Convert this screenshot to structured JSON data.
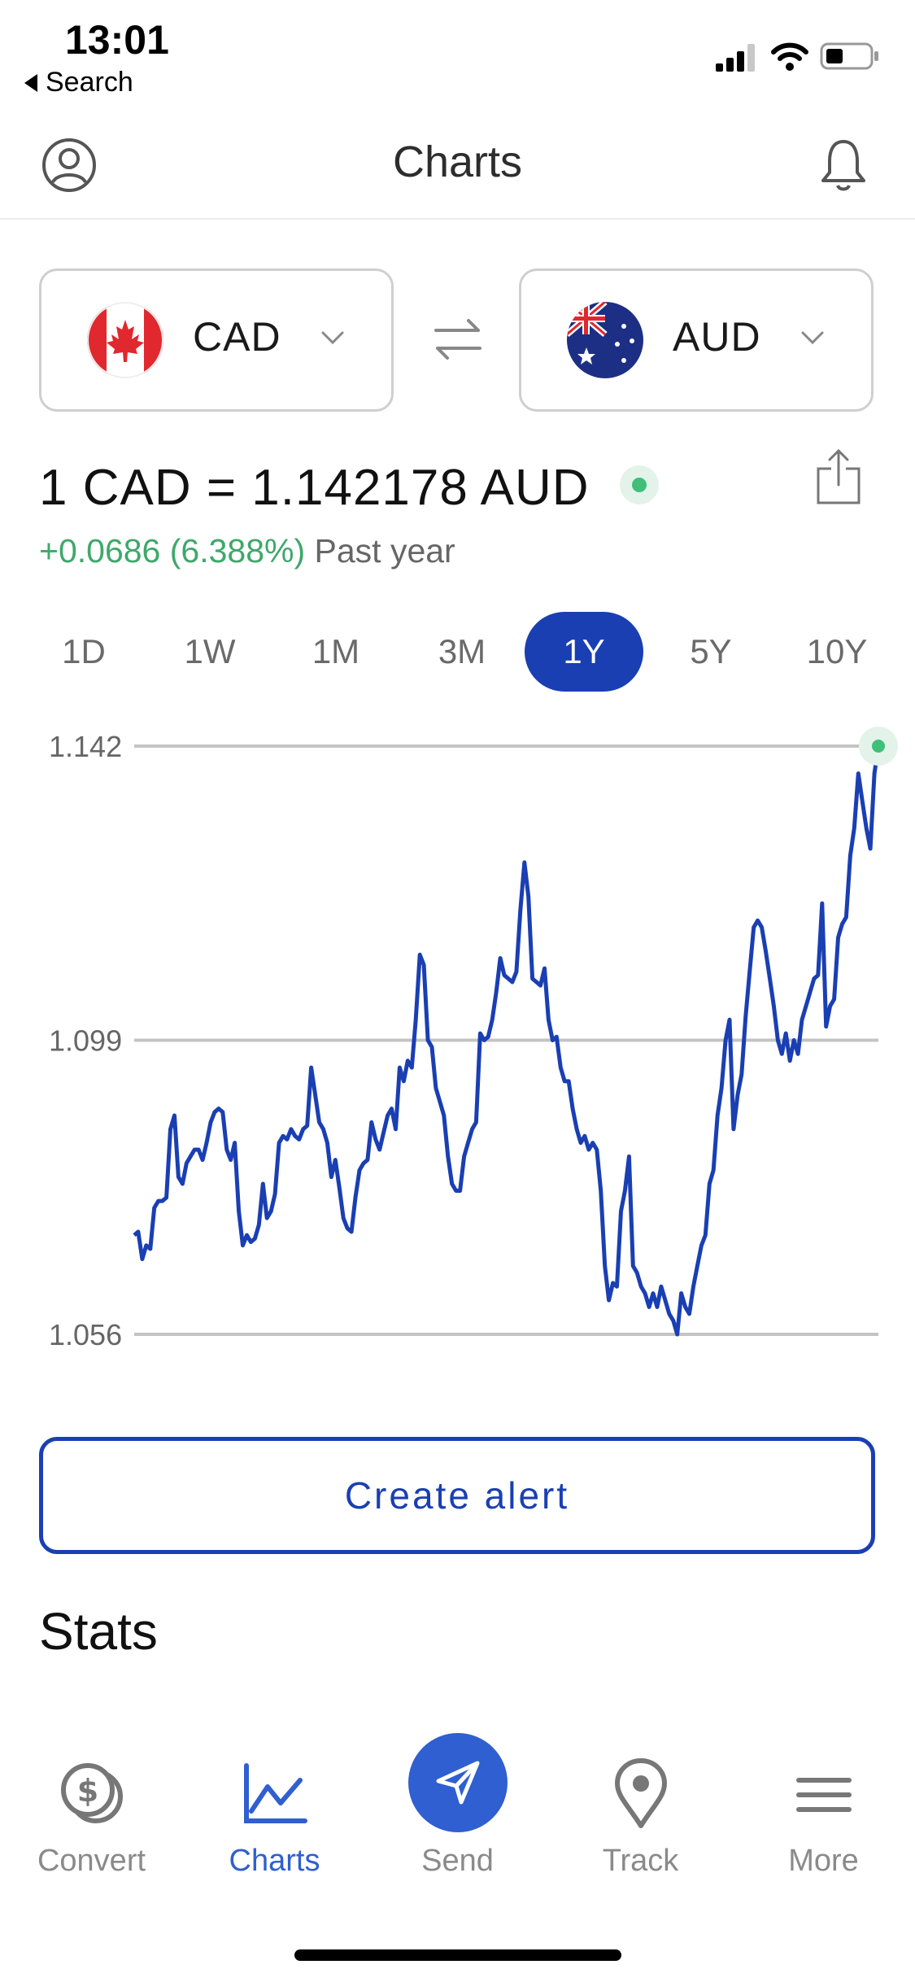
{
  "status_bar": {
    "time": "13:01",
    "back_label": "Search"
  },
  "header": {
    "title": "Charts"
  },
  "converter": {
    "from": {
      "code": "CAD"
    },
    "to": {
      "code": "AUD"
    }
  },
  "rate": {
    "text": "1 CAD = 1.142178 AUD",
    "change": "+0.0686 (6.388%)",
    "period": "Past year"
  },
  "ranges": [
    {
      "label": "1D",
      "active": false
    },
    {
      "label": "1W",
      "active": false
    },
    {
      "label": "1M",
      "active": false
    },
    {
      "label": "3M",
      "active": false
    },
    {
      "label": "1Y",
      "active": true
    },
    {
      "label": "5Y",
      "active": false
    },
    {
      "label": "10Y",
      "active": false
    }
  ],
  "chart_data": {
    "type": "line",
    "series": [
      {
        "values": [
          1.0705,
          1.071,
          1.067,
          1.069,
          1.0685,
          1.0745,
          1.0755,
          1.0755,
          1.076,
          1.086,
          1.088,
          1.079,
          1.078,
          1.081,
          1.082,
          1.083,
          1.083,
          1.0815,
          1.084,
          1.087,
          1.0885,
          1.089,
          1.0885,
          1.083,
          1.0815,
          1.084,
          1.074,
          1.069,
          1.0705,
          1.0695,
          1.07,
          1.072,
          1.078,
          1.073,
          1.074,
          1.0765,
          1.084,
          1.085,
          1.0845,
          1.086,
          1.085,
          1.0845,
          1.086,
          1.0865,
          1.095,
          1.091,
          1.087,
          1.086,
          1.084,
          1.079,
          1.0815,
          1.0775,
          1.073,
          1.0715,
          1.071,
          1.076,
          1.08,
          1.081,
          1.0815,
          1.087,
          1.0845,
          1.083,
          1.0855,
          1.088,
          1.089,
          1.086,
          1.095,
          1.093,
          1.096,
          1.095,
          1.102,
          1.1115,
          1.11,
          1.099,
          1.098,
          1.092,
          1.09,
          1.088,
          1.082,
          1.078,
          1.077,
          1.077,
          1.082,
          1.084,
          1.086,
          1.087,
          1.1,
          1.099,
          1.0995,
          1.102,
          1.106,
          1.111,
          1.1085,
          1.108,
          1.1075,
          1.109,
          1.118,
          1.125,
          1.12,
          1.108,
          1.1075,
          1.107,
          1.1095,
          1.102,
          1.099,
          1.0995,
          1.095,
          1.093,
          1.093,
          1.089,
          1.086,
          1.084,
          1.085,
          1.083,
          1.084,
          1.083,
          1.077,
          1.066,
          1.061,
          1.0635,
          1.063,
          1.074,
          1.077,
          1.082,
          1.066,
          1.065,
          1.063,
          1.062,
          1.06,
          1.062,
          1.06,
          1.063,
          1.061,
          1.059,
          1.058,
          1.056,
          1.062,
          1.06,
          1.059,
          1.063,
          1.066,
          1.069,
          1.0705,
          1.078,
          1.08,
          1.088,
          1.092,
          1.099,
          1.102,
          1.086,
          1.091,
          1.094,
          1.1025,
          1.109,
          1.1155,
          1.1165,
          1.1155,
          1.112,
          1.108,
          1.104,
          1.099,
          1.097,
          1.1,
          1.096,
          1.099,
          1.097,
          1.102,
          1.104,
          1.106,
          1.108,
          1.1085,
          1.119,
          1.101,
          1.104,
          1.105,
          1.114,
          1.116,
          1.117,
          1.126,
          1.13,
          1.138,
          1.134,
          1.13,
          1.127,
          1.138,
          1.142
        ],
        "color": "#1a3fb3"
      }
    ],
    "y_ticks": [
      "1.142",
      "1.099",
      "1.056"
    ],
    "ylim": [
      1.056,
      1.142
    ],
    "grid": true,
    "end_marker_color": "#3fbf7a"
  },
  "actions": {
    "create_alert": "Create alert"
  },
  "stats": {
    "title": "Stats"
  },
  "tabbar": [
    {
      "label": "Convert",
      "icon": "convert-icon",
      "active": false
    },
    {
      "label": "Charts",
      "icon": "charts-icon",
      "active": true
    },
    {
      "label": "Send",
      "icon": "send-icon",
      "active": false
    },
    {
      "label": "Track",
      "icon": "location-pin-icon",
      "active": false
    },
    {
      "label": "More",
      "icon": "menu-icon",
      "active": false
    }
  ],
  "colors": {
    "accent": "#1a3fb3",
    "tab_active": "#2f5fd0",
    "positive": "#3ea86b"
  }
}
